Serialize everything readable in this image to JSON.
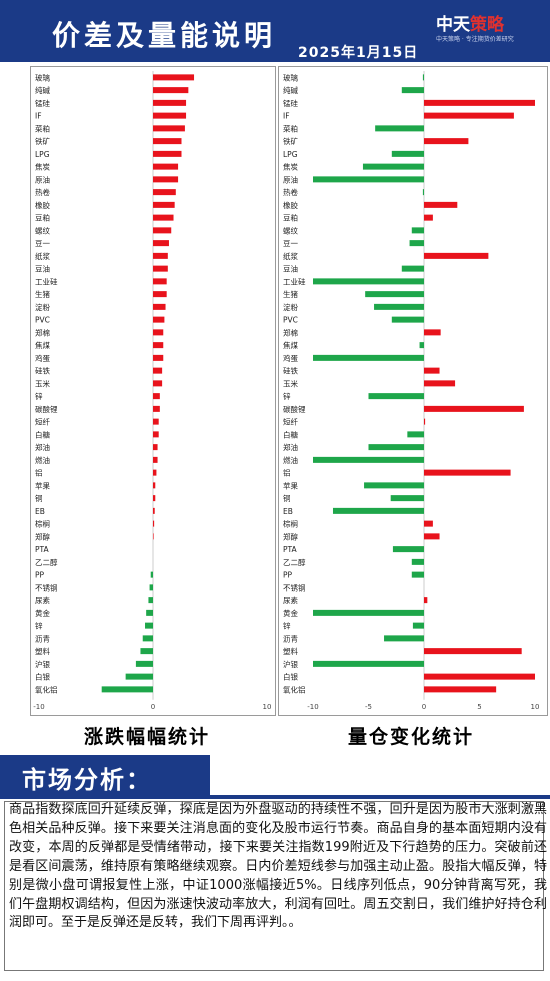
{
  "header": {
    "title": "价差及量能说明",
    "date": "2025年1月15日",
    "logo": "中天策略",
    "logo_tagline": "中天策略 · 专注期货价差研究"
  },
  "colors": {
    "positive": "#e8131c",
    "negative": "#1ea64a",
    "header_bg": "#1b3a87"
  },
  "chart_data": [
    {
      "type": "bar",
      "orientation": "horizontal",
      "caption": "涨跌幅幅统计",
      "xlim": [
        -10,
        10
      ],
      "xticks": [
        -10,
        0,
        10
      ],
      "grid": false,
      "categories": [
        "玻璃",
        "纯碱",
        "锰硅",
        "IF",
        "菜粕",
        "铁矿",
        "LPG",
        "焦炭",
        "原油",
        "热卷",
        "橡胶",
        "豆粕",
        "螺纹",
        "豆一",
        "纸浆",
        "豆油",
        "工业硅",
        "生猪",
        "淀粉",
        "PVC",
        "郑棉",
        "焦煤",
        "鸡蛋",
        "硅铁",
        "玉米",
        "锌",
        "碳酸锂",
        "短纤",
        "白糖",
        "郑油",
        "燃油",
        "铝",
        "苹果",
        "铜",
        "EB",
        "棕榈",
        "郑醇",
        "PTA",
        "乙二醇",
        "PP",
        "不锈钢",
        "尿素",
        "黄金",
        "锌",
        "沥青",
        "塑料",
        "沪银",
        "白银",
        "氧化铝"
      ],
      "values": [
        3.6,
        3.1,
        2.9,
        2.9,
        2.8,
        2.5,
        2.5,
        2.2,
        2.2,
        2.0,
        1.9,
        1.8,
        1.6,
        1.4,
        1.3,
        1.3,
        1.2,
        1.2,
        1.1,
        1.0,
        0.9,
        0.9,
        0.9,
        0.8,
        0.8,
        0.6,
        0.6,
        0.5,
        0.5,
        0.4,
        0.4,
        0.3,
        0.2,
        0.2,
        0.15,
        0.1,
        0.05,
        0.0,
        0.0,
        -0.2,
        -0.3,
        -0.4,
        -0.6,
        -0.7,
        -0.9,
        -1.1,
        -1.5,
        -2.4,
        -4.5
      ]
    },
    {
      "type": "bar",
      "orientation": "horizontal",
      "caption": "量仓变化统计",
      "xlim": [
        -10,
        10
      ],
      "xticks": [
        -10,
        -5,
        0,
        5,
        10
      ],
      "grid": false,
      "categories": [
        "玻璃",
        "纯碱",
        "锰硅",
        "IF",
        "菜粕",
        "铁矿",
        "LPG",
        "焦炭",
        "原油",
        "热卷",
        "橡胶",
        "豆粕",
        "螺纹",
        "豆一",
        "纸浆",
        "豆油",
        "工业硅",
        "生猪",
        "淀粉",
        "PVC",
        "郑棉",
        "焦煤",
        "鸡蛋",
        "硅铁",
        "玉米",
        "锌",
        "碳酸锂",
        "短纤",
        "白糖",
        "郑油",
        "燃油",
        "铝",
        "苹果",
        "铜",
        "EB",
        "棕榈",
        "郑醇",
        "PTA",
        "乙二醇",
        "PP",
        "不锈钢",
        "尿素",
        "黄金",
        "锌",
        "沥青",
        "塑料",
        "沪银",
        "白银",
        "氧化铝"
      ],
      "values": [
        -0.1,
        -2.0,
        10.0,
        8.1,
        -4.4,
        4.0,
        -2.9,
        -5.5,
        -10.0,
        -0.1,
        3.0,
        0.8,
        -1.1,
        -1.3,
        5.8,
        -2.0,
        -10.0,
        -5.3,
        -4.5,
        -2.9,
        1.5,
        -0.4,
        -10.0,
        1.4,
        2.8,
        -5.0,
        9.0,
        0.1,
        -1.5,
        -5.0,
        -10.0,
        7.8,
        -5.4,
        -3.0,
        -8.2,
        0.8,
        1.4,
        -2.8,
        -1.1,
        -1.1,
        0.0,
        0.3,
        -10.0,
        -1.0,
        -3.6,
        8.8,
        -10.0,
        10.0,
        6.5
      ]
    }
  ],
  "section": {
    "title": "市场分析："
  },
  "analysis": "商品指数探底回升延续反弹，探底是因为外盘驱动的持续性不强，回升是因为股市大涨刺激黑色相关品种反弹。接下来要关注消息面的变化及股市运行节奏。商品自身的基本面短期内没有改变，本周的反弹都是受情绪带动，接下来要关注指数199附近及下行趋势的压力。突破前还是看区间震荡，维持原有策略继续观察。日内价差短线参与加强主动止盈。股指大幅反弹，特别是微小盘可谓报复性上涨，中证1000涨幅接近5%。日线序列低点，90分钟背离写死，我们午盘期权调结构，但因为涨速快波动率放大，利润有回吐。周五交割日，我们维护好持仓利润即可。至于是反弹还是反转，我们下周再评判。。"
}
